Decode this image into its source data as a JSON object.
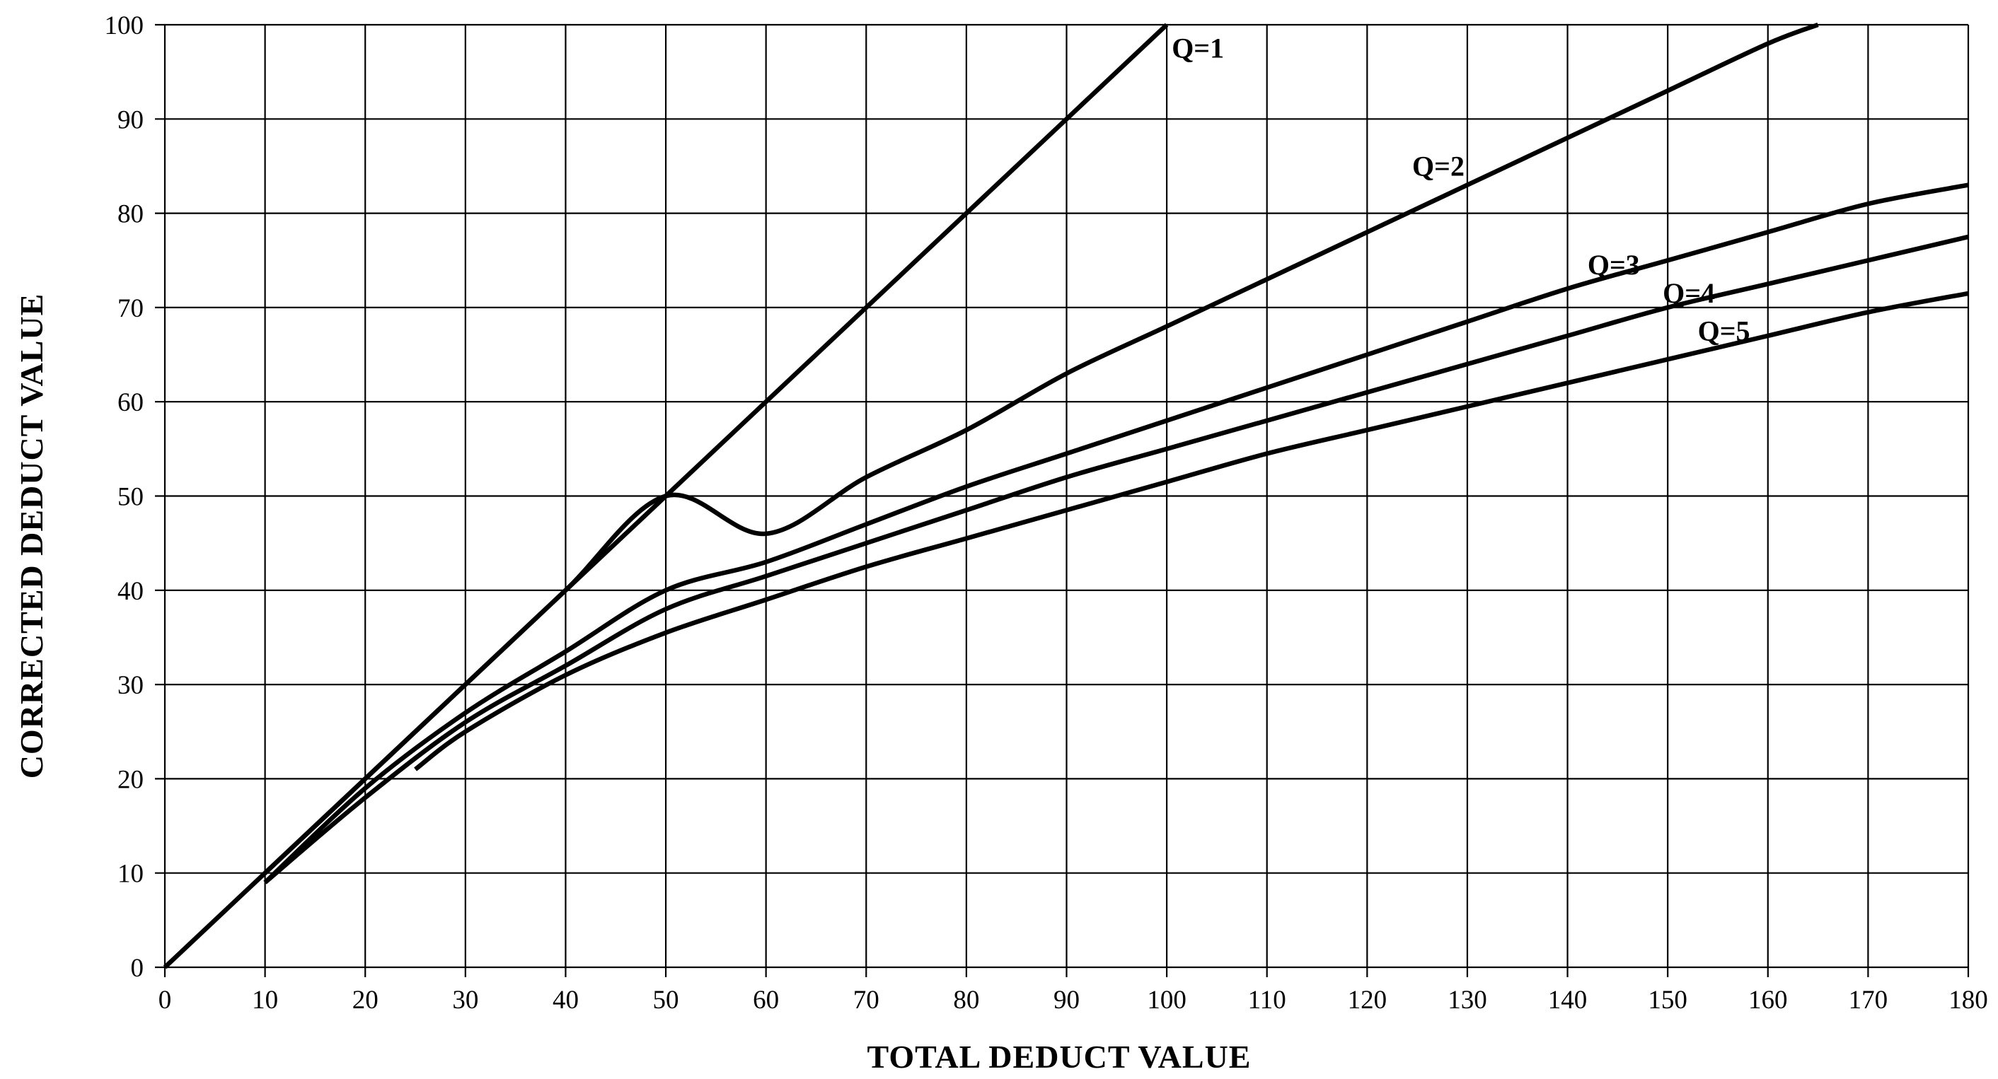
{
  "chart_data": {
    "type": "line",
    "title": "",
    "xlabel": "TOTAL DEDUCT VALUE",
    "ylabel": "CORRECTED DEDUCT VALUE",
    "xlim": [
      0,
      180
    ],
    "ylim": [
      0,
      100
    ],
    "x_ticks": [
      "0",
      "10",
      "20",
      "30",
      "40",
      "50",
      "60",
      "70",
      "80",
      "90",
      "100",
      "110",
      "120",
      "130",
      "140",
      "150",
      "160",
      "170",
      "180"
    ],
    "y_ticks": [
      "0",
      "10",
      "20",
      "30",
      "40",
      "50",
      "60",
      "70",
      "80",
      "90",
      "100"
    ],
    "grid": true,
    "legend": "none",
    "line_color": "#000000",
    "series": [
      {
        "name": "Q=1",
        "x": [
          0,
          100
        ],
        "y": [
          0,
          100
        ]
      },
      {
        "name": "Q=2",
        "x": [
          10,
          20,
          30,
          40,
          50,
          60,
          70,
          80,
          90,
          100,
          110,
          120,
          130,
          140,
          150,
          160,
          165
        ],
        "y": [
          10,
          20,
          30,
          40,
          50,
          46,
          52,
          57,
          63,
          68,
          73,
          78,
          83,
          88,
          93,
          98,
          100
        ]
      },
      {
        "name": "Q=3",
        "x": [
          10,
          20,
          30,
          40,
          50,
          60,
          70,
          80,
          90,
          100,
          110,
          120,
          130,
          140,
          150,
          160,
          170,
          180
        ],
        "y": [
          9,
          19,
          27,
          33.5,
          40,
          43,
          47,
          51,
          54.5,
          58,
          61.5,
          65,
          68.5,
          72,
          75,
          78,
          81,
          83
        ]
      },
      {
        "name": "Q=4",
        "x": [
          10,
          20,
          30,
          40,
          50,
          60,
          70,
          80,
          90,
          100,
          110,
          120,
          130,
          140,
          150,
          160,
          170,
          180
        ],
        "y": [
          9,
          18,
          26,
          32,
          38,
          41.5,
          45,
          48.5,
          52,
          55,
          58,
          61,
          64,
          67,
          70,
          72.5,
          75,
          77.5
        ]
      },
      {
        "name": "Q=5",
        "x": [
          25,
          30,
          40,
          50,
          60,
          70,
          80,
          90,
          100,
          110,
          120,
          130,
          140,
          150,
          160,
          170,
          180
        ],
        "y": [
          21,
          25,
          31,
          35.5,
          39,
          42.5,
          45.5,
          48.5,
          51.5,
          54.5,
          57,
          59.5,
          62,
          64.5,
          67,
          69.5,
          71.5
        ]
      }
    ],
    "annotations": [
      {
        "text": "Q=1",
        "x": 100.5,
        "y": 96.5
      },
      {
        "text": "Q=2",
        "x": 124.5,
        "y": 84
      },
      {
        "text": "Q=3",
        "x": 142,
        "y": 73.5
      },
      {
        "text": "Q=4",
        "x": 149.5,
        "y": 70.5
      },
      {
        "text": "Q=5",
        "x": 153,
        "y": 66.5
      }
    ]
  }
}
